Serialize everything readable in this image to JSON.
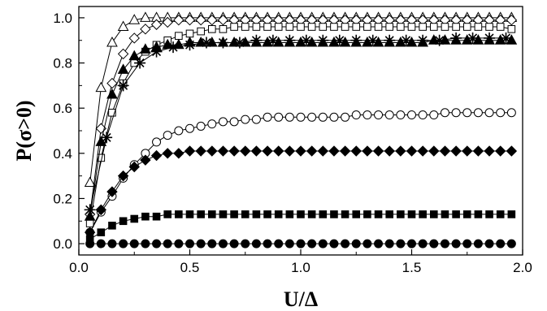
{
  "chart_data": {
    "type": "line",
    "xlabel": "U/Δ",
    "ylabel": "P(σ>0)",
    "xlim": [
      0.0,
      2.0
    ],
    "ylim": [
      -0.05,
      1.05
    ],
    "xticks": [
      0.0,
      0.5,
      1.0,
      1.5,
      2.0
    ],
    "xtick_labels": [
      "0.0",
      "0.5",
      "1.0",
      "1.5",
      "2.0"
    ],
    "yticks": [
      0.0,
      0.2,
      0.4,
      0.6,
      0.8,
      1.0
    ],
    "ytick_labels": [
      "0.0",
      "0.2",
      "0.4",
      "0.6",
      "0.8",
      "1.0"
    ],
    "grid": false,
    "series": [
      {
        "marker": "open-triangle",
        "x": [
          0.05,
          0.1,
          0.15,
          0.2,
          0.25,
          0.3,
          0.35,
          0.4,
          0.45,
          0.5,
          0.55,
          0.6,
          0.65,
          0.7,
          0.75,
          0.8,
          0.85,
          0.9,
          0.95,
          1.0,
          1.05,
          1.1,
          1.15,
          1.2,
          1.25,
          1.3,
          1.35,
          1.4,
          1.45,
          1.5,
          1.55,
          1.6,
          1.65,
          1.7,
          1.75,
          1.8,
          1.85,
          1.9,
          1.95
        ],
        "y": [
          0.27,
          0.69,
          0.89,
          0.96,
          0.99,
          1.0,
          1.0,
          1.0,
          1.0,
          1.0,
          1.0,
          1.0,
          1.0,
          1.0,
          1.0,
          1.0,
          1.0,
          1.0,
          1.0,
          1.0,
          1.0,
          1.0,
          1.0,
          1.0,
          1.0,
          1.0,
          1.0,
          1.0,
          1.0,
          1.0,
          1.0,
          1.0,
          1.0,
          1.0,
          1.0,
          1.0,
          1.0,
          1.0,
          1.0
        ]
      },
      {
        "marker": "open-diamond",
        "x": [
          0.05,
          0.1,
          0.15,
          0.2,
          0.25,
          0.3,
          0.35,
          0.4,
          0.45,
          0.5,
          0.55,
          0.6,
          0.65,
          0.7,
          0.75,
          0.8,
          0.85,
          0.9,
          0.95,
          1.0,
          1.05,
          1.1,
          1.15,
          1.2,
          1.25,
          1.3,
          1.35,
          1.4,
          1.45,
          1.5,
          1.55,
          1.6,
          1.65,
          1.7,
          1.75,
          1.8,
          1.85,
          1.9,
          1.95
        ],
        "y": [
          0.13,
          0.51,
          0.71,
          0.84,
          0.91,
          0.95,
          0.97,
          0.98,
          0.99,
          0.99,
          0.99,
          0.99,
          0.99,
          0.99,
          0.99,
          0.99,
          0.99,
          0.99,
          0.99,
          0.99,
          0.99,
          0.99,
          0.99,
          0.99,
          0.99,
          0.99,
          0.99,
          0.99,
          0.99,
          0.99,
          0.99,
          0.99,
          0.99,
          0.99,
          0.99,
          0.99,
          0.99,
          0.99,
          0.99
        ]
      },
      {
        "marker": "open-square",
        "x": [
          0.05,
          0.1,
          0.15,
          0.2,
          0.25,
          0.3,
          0.35,
          0.4,
          0.45,
          0.5,
          0.55,
          0.6,
          0.65,
          0.7,
          0.75,
          0.8,
          0.85,
          0.9,
          0.95,
          1.0,
          1.05,
          1.1,
          1.15,
          1.2,
          1.25,
          1.3,
          1.35,
          1.4,
          1.45,
          1.5,
          1.55,
          1.6,
          1.65,
          1.7,
          1.75,
          1.8,
          1.85,
          1.9,
          1.95
        ],
        "y": [
          0.09,
          0.38,
          0.58,
          0.71,
          0.8,
          0.85,
          0.88,
          0.9,
          0.92,
          0.93,
          0.94,
          0.95,
          0.95,
          0.96,
          0.96,
          0.96,
          0.96,
          0.96,
          0.96,
          0.96,
          0.96,
          0.96,
          0.96,
          0.96,
          0.96,
          0.96,
          0.96,
          0.96,
          0.96,
          0.96,
          0.96,
          0.96,
          0.96,
          0.96,
          0.96,
          0.96,
          0.96,
          0.96,
          0.95
        ]
      },
      {
        "marker": "asterisk",
        "x": [
          0.05,
          0.125,
          0.2,
          0.275,
          0.35,
          0.425,
          0.5,
          0.575,
          0.65,
          0.725,
          0.8,
          0.875,
          0.95,
          1.025,
          1.1,
          1.175,
          1.25,
          1.325,
          1.4,
          1.475,
          1.55,
          1.625,
          1.7,
          1.775,
          1.85,
          1.925
        ],
        "y": [
          0.15,
          0.47,
          0.7,
          0.8,
          0.85,
          0.87,
          0.88,
          0.89,
          0.89,
          0.89,
          0.9,
          0.9,
          0.9,
          0.9,
          0.9,
          0.9,
          0.9,
          0.9,
          0.9,
          0.9,
          0.9,
          0.9,
          0.91,
          0.91,
          0.91,
          0.91
        ]
      },
      {
        "marker": "filled-triangle",
        "x": [
          0.05,
          0.1,
          0.15,
          0.2,
          0.25,
          0.3,
          0.35,
          0.4,
          0.45,
          0.5,
          0.55,
          0.6,
          0.65,
          0.7,
          0.75,
          0.8,
          0.85,
          0.9,
          0.95,
          1.0,
          1.05,
          1.1,
          1.15,
          1.2,
          1.25,
          1.3,
          1.35,
          1.4,
          1.45,
          1.5,
          1.55,
          1.6,
          1.65,
          1.7,
          1.75,
          1.8,
          1.85,
          1.9,
          1.95
        ],
        "y": [
          0.12,
          0.45,
          0.66,
          0.77,
          0.83,
          0.86,
          0.87,
          0.88,
          0.88,
          0.89,
          0.89,
          0.89,
          0.89,
          0.89,
          0.89,
          0.89,
          0.89,
          0.89,
          0.89,
          0.89,
          0.89,
          0.89,
          0.89,
          0.89,
          0.89,
          0.89,
          0.89,
          0.89,
          0.89,
          0.89,
          0.89,
          0.9,
          0.9,
          0.9,
          0.9,
          0.9,
          0.9,
          0.9,
          0.9
        ]
      },
      {
        "marker": "open-circle",
        "x": [
          0.05,
          0.1,
          0.15,
          0.2,
          0.25,
          0.3,
          0.35,
          0.4,
          0.45,
          0.5,
          0.55,
          0.6,
          0.65,
          0.7,
          0.75,
          0.8,
          0.85,
          0.9,
          0.95,
          1.0,
          1.05,
          1.1,
          1.15,
          1.2,
          1.25,
          1.3,
          1.35,
          1.4,
          1.45,
          1.5,
          1.55,
          1.6,
          1.65,
          1.7,
          1.75,
          1.8,
          1.85,
          1.9,
          1.95
        ],
        "y": [
          0.05,
          0.14,
          0.21,
          0.29,
          0.35,
          0.4,
          0.45,
          0.48,
          0.5,
          0.51,
          0.52,
          0.53,
          0.54,
          0.54,
          0.55,
          0.55,
          0.56,
          0.56,
          0.56,
          0.56,
          0.56,
          0.56,
          0.56,
          0.56,
          0.57,
          0.57,
          0.57,
          0.57,
          0.57,
          0.57,
          0.57,
          0.57,
          0.58,
          0.58,
          0.58,
          0.58,
          0.58,
          0.58,
          0.58
        ]
      },
      {
        "marker": "filled-diamond",
        "x": [
          0.05,
          0.1,
          0.15,
          0.2,
          0.25,
          0.3,
          0.35,
          0.4,
          0.45,
          0.5,
          0.55,
          0.6,
          0.65,
          0.7,
          0.75,
          0.8,
          0.85,
          0.9,
          0.95,
          1.0,
          1.05,
          1.1,
          1.15,
          1.2,
          1.25,
          1.3,
          1.35,
          1.4,
          1.45,
          1.5,
          1.55,
          1.6,
          1.65,
          1.7,
          1.75,
          1.8,
          1.85,
          1.9,
          1.95
        ],
        "y": [
          0.05,
          0.15,
          0.23,
          0.3,
          0.34,
          0.37,
          0.39,
          0.4,
          0.4,
          0.41,
          0.41,
          0.41,
          0.41,
          0.41,
          0.41,
          0.41,
          0.41,
          0.41,
          0.41,
          0.41,
          0.41,
          0.41,
          0.41,
          0.41,
          0.41,
          0.41,
          0.41,
          0.41,
          0.41,
          0.41,
          0.41,
          0.41,
          0.41,
          0.41,
          0.41,
          0.41,
          0.41,
          0.41,
          0.41
        ]
      },
      {
        "marker": "filled-square",
        "x": [
          0.05,
          0.1,
          0.15,
          0.2,
          0.25,
          0.3,
          0.35,
          0.4,
          0.45,
          0.5,
          0.55,
          0.6,
          0.65,
          0.7,
          0.75,
          0.8,
          0.85,
          0.9,
          0.95,
          1.0,
          1.05,
          1.1,
          1.15,
          1.2,
          1.25,
          1.3,
          1.35,
          1.4,
          1.45,
          1.5,
          1.55,
          1.6,
          1.65,
          1.7,
          1.75,
          1.8,
          1.85,
          1.9,
          1.95
        ],
        "y": [
          0.02,
          0.05,
          0.08,
          0.1,
          0.11,
          0.12,
          0.12,
          0.13,
          0.13,
          0.13,
          0.13,
          0.13,
          0.13,
          0.13,
          0.13,
          0.13,
          0.13,
          0.13,
          0.13,
          0.13,
          0.13,
          0.13,
          0.13,
          0.13,
          0.13,
          0.13,
          0.13,
          0.13,
          0.13,
          0.13,
          0.13,
          0.13,
          0.13,
          0.13,
          0.13,
          0.13,
          0.13,
          0.13,
          0.13
        ]
      },
      {
        "marker": "filled-circle",
        "x": [
          0.05,
          0.1,
          0.15,
          0.2,
          0.25,
          0.3,
          0.35,
          0.4,
          0.45,
          0.5,
          0.55,
          0.6,
          0.65,
          0.7,
          0.75,
          0.8,
          0.85,
          0.9,
          0.95,
          1.0,
          1.05,
          1.1,
          1.15,
          1.2,
          1.25,
          1.3,
          1.35,
          1.4,
          1.45,
          1.5,
          1.55,
          1.6,
          1.65,
          1.7,
          1.75,
          1.8,
          1.85,
          1.9,
          1.95
        ],
        "y": [
          0.0,
          0.0,
          0.0,
          0.0,
          0.0,
          0.0,
          0.0,
          0.0,
          0.0,
          0.0,
          0.0,
          0.0,
          0.0,
          0.0,
          0.0,
          0.0,
          0.0,
          0.0,
          0.0,
          0.0,
          0.0,
          0.0,
          0.0,
          0.0,
          0.0,
          0.0,
          0.0,
          0.0,
          0.0,
          0.0,
          0.0,
          0.0,
          0.0,
          0.0,
          0.0,
          0.0,
          0.0,
          0.0,
          0.0
        ]
      }
    ]
  }
}
